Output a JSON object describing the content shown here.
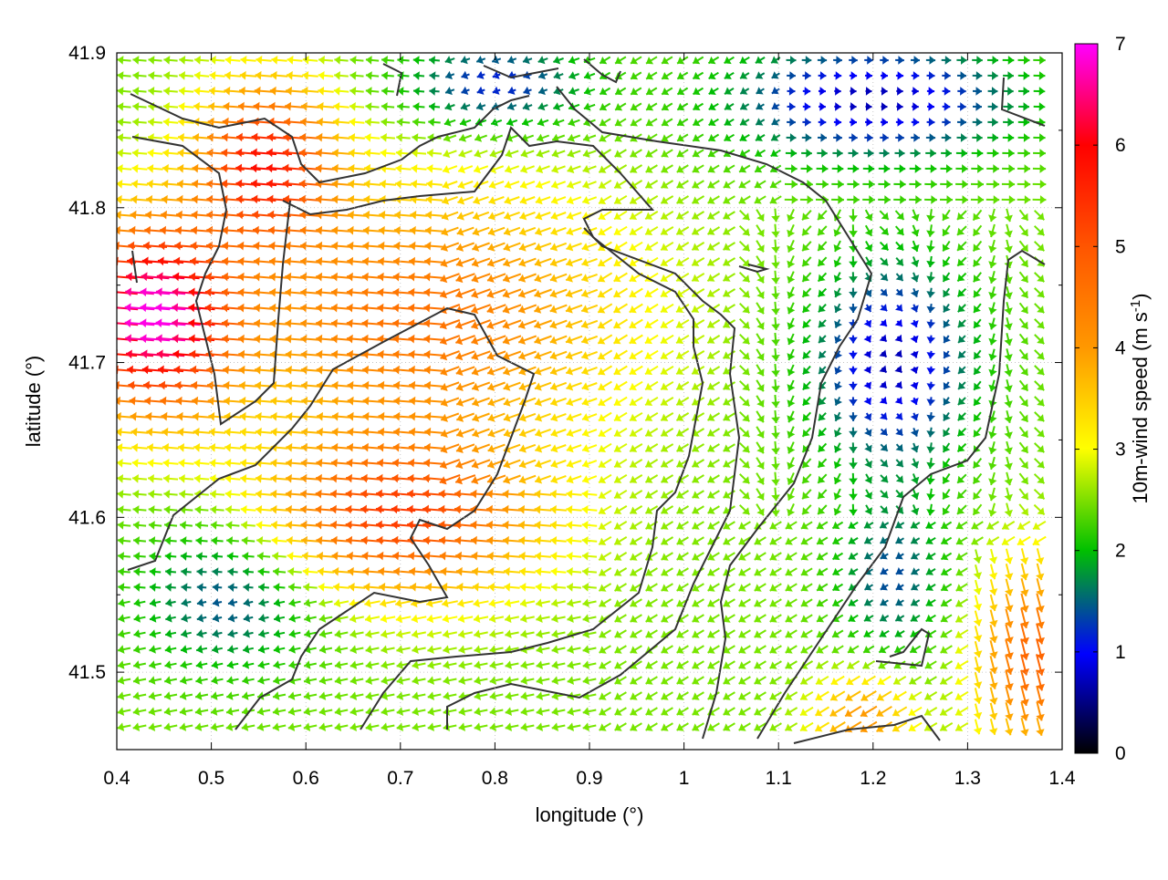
{
  "chart_data": {
    "type": "vector_field",
    "xlabel": "longitude (°)",
    "ylabel": "latitude (°)",
    "xlim": [
      0.4,
      1.4
    ],
    "ylim": [
      41.45,
      41.9
    ],
    "xticks": [
      0.4,
      0.5,
      0.6,
      0.7,
      0.8,
      0.9,
      1.0,
      1.1,
      1.2,
      1.3,
      1.4
    ],
    "xtick_labels": [
      "0.4",
      "0.5",
      "0.6",
      "0.7",
      "0.8",
      "0.9",
      "1",
      "1.1",
      "1.2",
      "1.3",
      "1.4"
    ],
    "yticks": [
      41.5,
      41.6,
      41.7,
      41.8,
      41.9
    ],
    "ytick_labels": [
      "41.5",
      "41.6",
      "41.7",
      "41.8",
      "41.9"
    ],
    "grid": true,
    "colorbar": {
      "label_main": "10m-wind speed (m s",
      "label_sup": "-1",
      "label_end": ")",
      "min": 0,
      "max": 7,
      "ticks": [
        0,
        1,
        2,
        3,
        4,
        5,
        6,
        7
      ],
      "tick_labels": [
        "0",
        "1",
        "2",
        "3",
        "4",
        "5",
        "6",
        "7"
      ],
      "colors": [
        "#000000",
        "#0000ff",
        "#00c000",
        "#ffff00",
        "#ff8000",
        "#ff0000",
        "#ff00ff"
      ]
    },
    "wind_regions_approx": [
      {
        "area": "west coast around lon 0.40-0.52, lat 41.68-41.80",
        "speed": 6.5,
        "direction": "westward"
      },
      {
        "area": "north-west around lon 0.52-0.60, lat 41.80-41.88",
        "speed": 5.5,
        "direction": "westward"
      },
      {
        "area": "central valley lon 0.62-0.85, lat 41.53-41.65",
        "speed": 5.0,
        "direction": "westward"
      },
      {
        "area": "central plateau lon 0.60-0.90, lat 41.65-41.80",
        "speed": 4.0,
        "direction": "west-south-west"
      },
      {
        "area": "east lon 1.10-1.30, lat 41.65-41.78",
        "speed": 1.0,
        "direction": "variable"
      },
      {
        "area": "north-east lon 1.10-1.40, lat 41.82-41.90",
        "speed": 1.0,
        "direction": "eastward"
      },
      {
        "area": "south-east corner lon 1.30-1.40, lat 41.45-41.55",
        "speed": 5.0,
        "direction": "southward"
      }
    ],
    "topography_contours": "dark grey elevation contour lines"
  }
}
